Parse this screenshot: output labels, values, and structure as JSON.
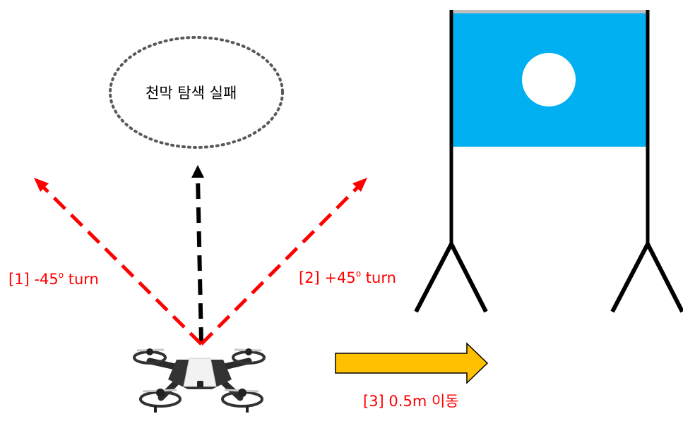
{
  "bubble": {
    "text": "천막 탐색 실패"
  },
  "turn_left": {
    "prefix": "[1] -45",
    "degree_symbol": "o",
    "suffix": " turn"
  },
  "turn_right": {
    "prefix": "[2] +45",
    "degree_symbol": "o",
    "suffix": " turn"
  },
  "move": {
    "label": "[3] 0.5m 이동"
  },
  "colors": {
    "turn_arrows": "#ff0000",
    "forward_arrow": "#000000",
    "move_arrow_fill": "#ffc000",
    "move_arrow_stroke": "#000000",
    "tent_panel": "#00b0f0",
    "tent_target": "#ffffff",
    "tent_frame": "#000000",
    "tent_top_bar": "#bfbfbf",
    "bubble_outline": "#595959",
    "label_text": "#ff0000"
  },
  "icons": {
    "drone": "quadcopter-drone-icon",
    "tent": "tent-target-icon"
  }
}
